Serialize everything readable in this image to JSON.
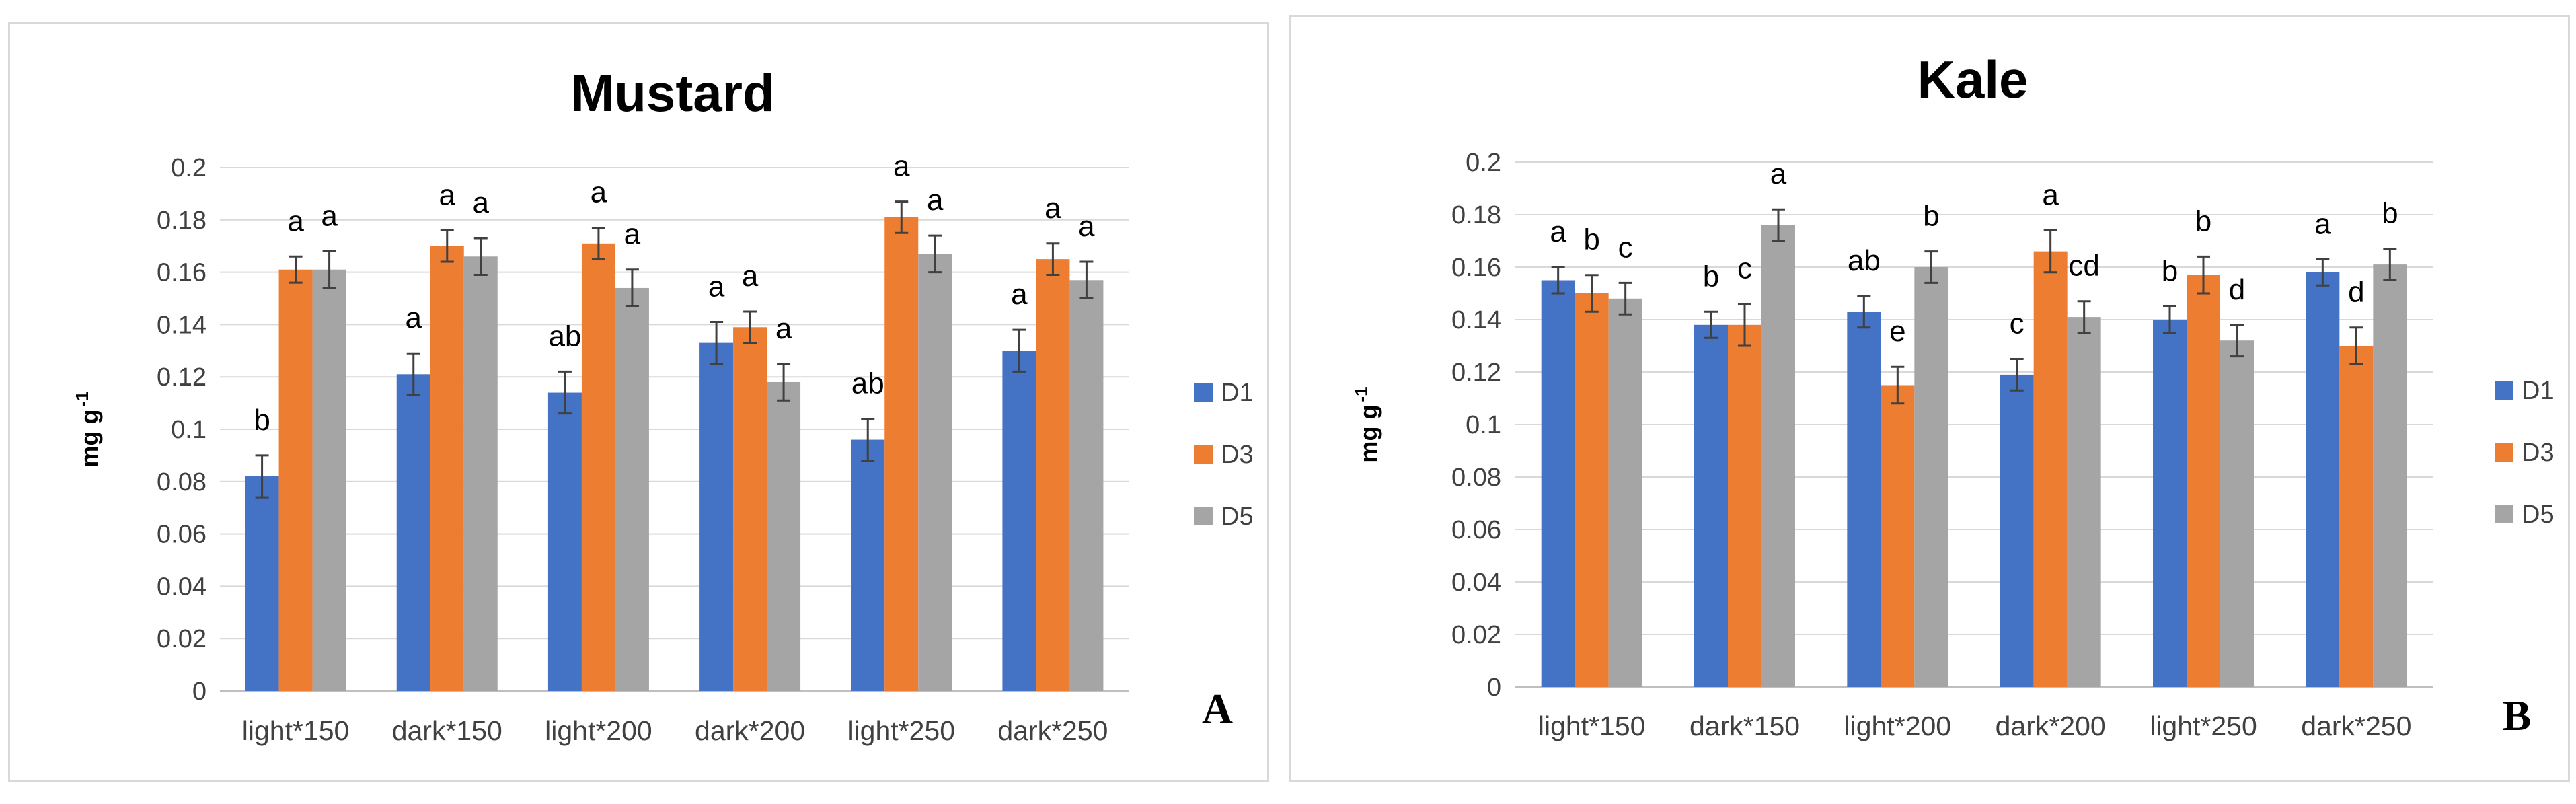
{
  "chart_data": [
    {
      "type": "bar",
      "panel": "A",
      "title": "Mustard",
      "ylabel": "mg g-1",
      "ylabel_main": "mg g",
      "ylabel_sup": "-1",
      "xlabel": "",
      "ylim": [
        0,
        0.2
      ],
      "ytick_labels": [
        "0",
        "0.02",
        "0.04",
        "0.06",
        "0.08",
        "0.1",
        "0.12",
        "0.14",
        "0.16",
        "0.18",
        "0.2"
      ],
      "categories": [
        "light*150",
        "dark*150",
        "light*200",
        "dark*200",
        "light*250",
        "dark*250"
      ],
      "series": [
        {
          "name": "D1",
          "color": "#4472c4",
          "values": [
            0.082,
            0.121,
            0.114,
            0.133,
            0.096,
            0.13
          ],
          "errors": [
            0.008,
            0.008,
            0.008,
            0.008,
            0.008,
            0.008
          ],
          "letters": [
            "b",
            "a",
            "ab",
            "a",
            "ab",
            "a"
          ]
        },
        {
          "name": "D3",
          "color": "#ed7d31",
          "values": [
            0.161,
            0.17,
            0.171,
            0.139,
            0.181,
            0.165
          ],
          "errors": [
            0.005,
            0.006,
            0.006,
            0.006,
            0.006,
            0.006
          ],
          "letters": [
            "a",
            "a",
            "a",
            "a",
            "a",
            "a"
          ]
        },
        {
          "name": "D5",
          "color": "#a5a5a5",
          "values": [
            0.161,
            0.166,
            0.154,
            0.118,
            0.167,
            0.157
          ],
          "errors": [
            0.007,
            0.007,
            0.007,
            0.007,
            0.007,
            0.007
          ],
          "letters": [
            "a",
            "a",
            "a",
            "a",
            "a",
            "a"
          ]
        }
      ],
      "legend_position": "right"
    },
    {
      "type": "bar",
      "panel": "B",
      "title": "Kale",
      "ylabel": "mg g-1",
      "ylabel_main": "mg g",
      "ylabel_sup": "-1",
      "xlabel": "",
      "ylim": [
        0,
        0.2
      ],
      "ytick_labels": [
        "0",
        "0.02",
        "0.04",
        "0.06",
        "0.08",
        "0.1",
        "0.12",
        "0.14",
        "0.16",
        "0.18",
        "0.2"
      ],
      "categories": [
        "light*150",
        "dark*150",
        "light*200",
        "dark*200",
        "light*250",
        "dark*250"
      ],
      "series": [
        {
          "name": "D1",
          "color": "#4472c4",
          "values": [
            0.155,
            0.138,
            0.143,
            0.119,
            0.14,
            0.158
          ],
          "errors": [
            0.005,
            0.005,
            0.006,
            0.006,
            0.005,
            0.005
          ],
          "letters": [
            "a",
            "b",
            "ab",
            "c",
            "b",
            "a"
          ]
        },
        {
          "name": "D3",
          "color": "#ed7d31",
          "values": [
            0.15,
            0.138,
            0.115,
            0.166,
            0.157,
            0.13
          ],
          "errors": [
            0.007,
            0.008,
            0.007,
            0.008,
            0.007,
            0.007
          ],
          "letters": [
            "b",
            "c",
            "e",
            "a",
            "b",
            "d"
          ]
        },
        {
          "name": "D5",
          "color": "#a5a5a5",
          "values": [
            0.148,
            0.176,
            0.16,
            0.141,
            0.132,
            0.161
          ],
          "errors": [
            0.006,
            0.006,
            0.006,
            0.006,
            0.006,
            0.006
          ],
          "letters": [
            "c",
            "a",
            "b",
            "cd",
            "d",
            "b"
          ]
        }
      ],
      "legend_position": "right"
    }
  ]
}
